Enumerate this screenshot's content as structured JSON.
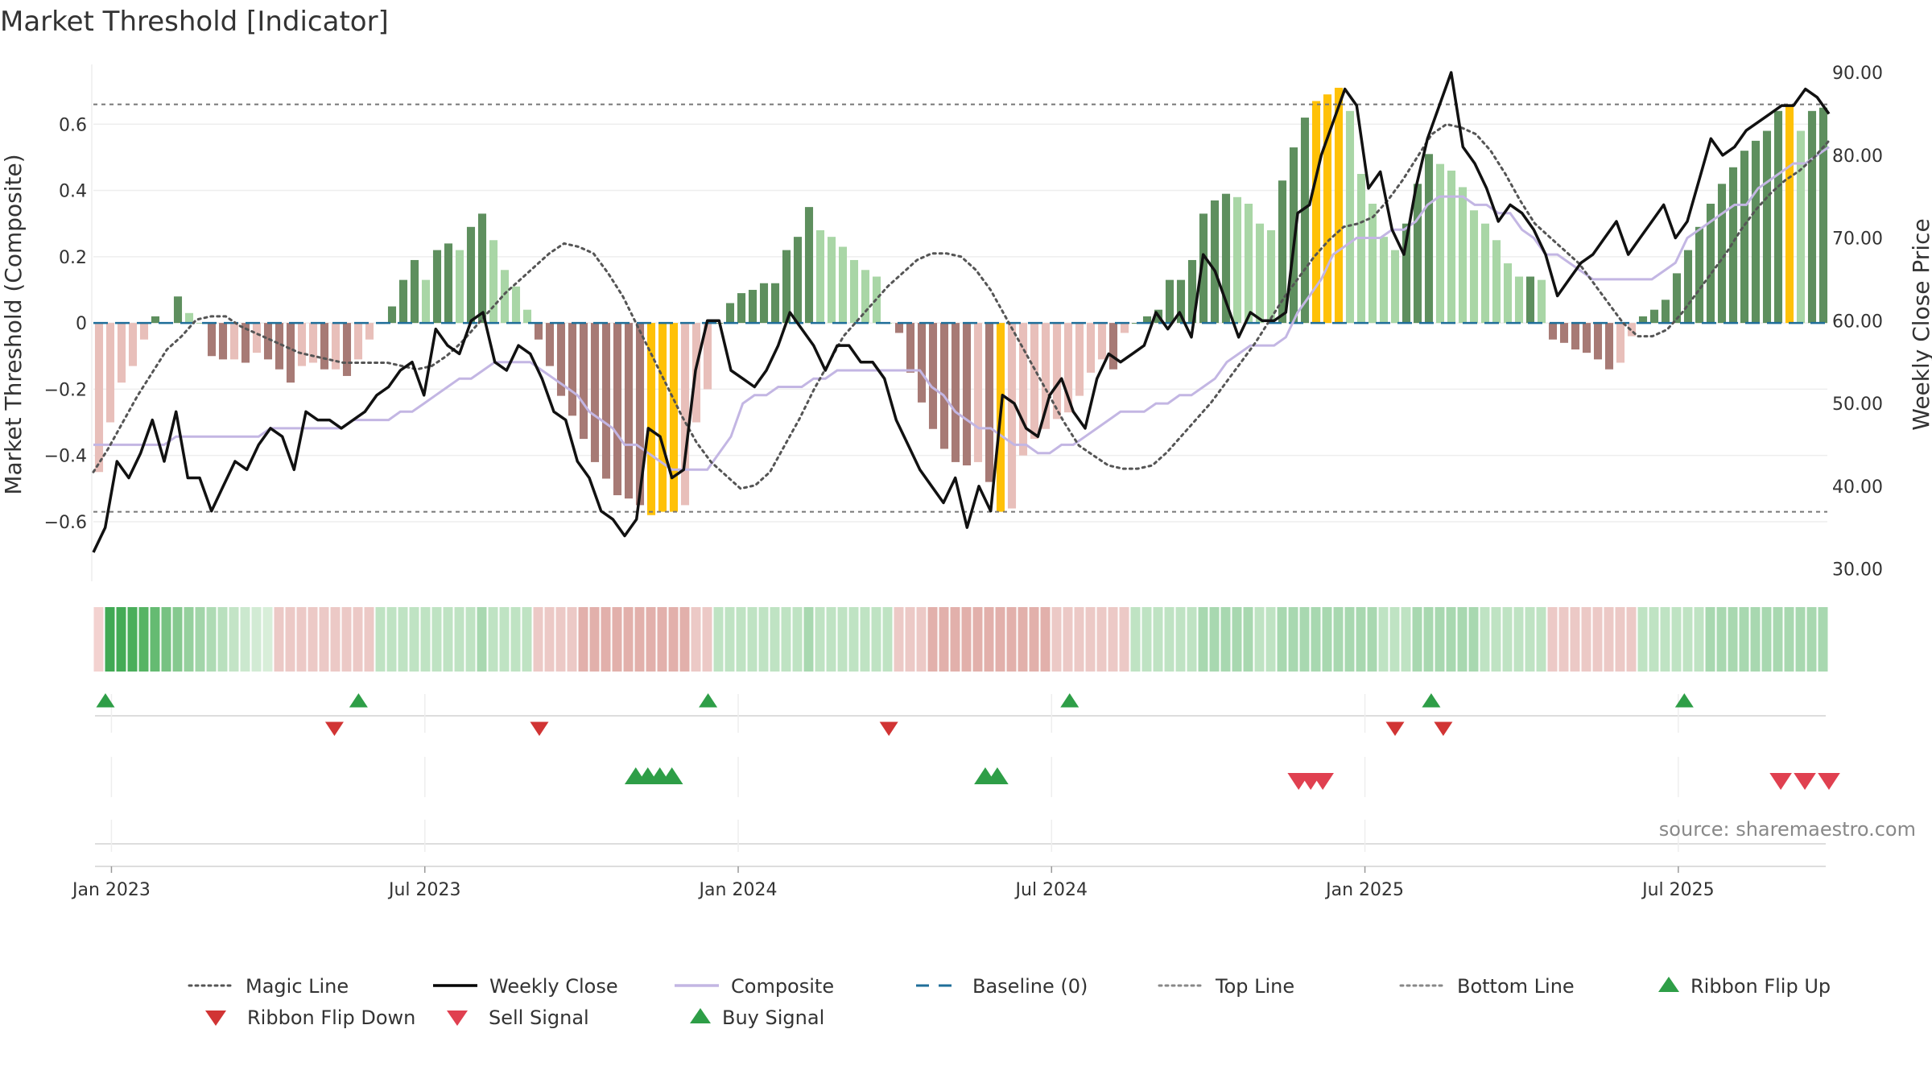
{
  "chart_data": {
    "type": "bar",
    "title": "Market Threshold [Indicator]",
    "ylabel_left": "Market Threshold (Composite)",
    "ylabel_right": "Weekly Close Price",
    "source": "source: sharemaestro.com",
    "left_axis": {
      "range": [
        -0.78,
        0.8
      ],
      "ticks": [
        0.6,
        0.4,
        0.2,
        0,
        -0.2,
        -0.4,
        -0.6
      ],
      "tick_labels": [
        "0.6",
        "0.4",
        "0.2",
        "0",
        "−0.2",
        "−0.4",
        "−0.6"
      ]
    },
    "right_axis": {
      "range": [
        28.5,
        90.0
      ],
      "ticks": [
        90,
        80,
        70,
        60,
        50,
        40,
        30
      ],
      "tick_labels": [
        "90.00",
        "80.00",
        "70.00",
        "60.00",
        "50.00",
        "40.00",
        "30.00"
      ]
    },
    "x_ticks": [
      {
        "week": 1.5,
        "label": "Jan 2023"
      },
      {
        "week": 27.5,
        "label": "Jul 2023"
      },
      {
        "week": 53.5,
        "label": "Jan 2024"
      },
      {
        "week": 79.5,
        "label": "Jul 2024"
      },
      {
        "week": 105.5,
        "label": "Jan 2025"
      },
      {
        "week": 131.5,
        "label": "Jul 2025"
      }
    ],
    "x_range": [
      0,
      144
    ],
    "top_line": 0.66,
    "bottom_line": -0.57,
    "baseline": 0,
    "composite_bars": [
      -0.45,
      -0.3,
      -0.18,
      -0.13,
      -0.05,
      0.02,
      0,
      0.08,
      0.03,
      0,
      -0.1,
      -0.11,
      -0.11,
      -0.12,
      -0.09,
      -0.11,
      -0.14,
      -0.18,
      -0.13,
      -0.12,
      -0.14,
      -0.14,
      -0.16,
      -0.11,
      -0.05,
      0,
      0.05,
      0.13,
      0.19,
      0.13,
      0.22,
      0.24,
      0.22,
      0.29,
      0.33,
      0.25,
      0.16,
      0.11,
      0.04,
      -0.05,
      -0.13,
      -0.22,
      -0.28,
      -0.35,
      -0.42,
      -0.47,
      -0.52,
      -0.53,
      -0.55,
      -0.58,
      -0.57,
      -0.57,
      -0.55,
      -0.3,
      -0.2,
      0,
      0.06,
      0.09,
      0.1,
      0.12,
      0.12,
      0.22,
      0.26,
      0.35,
      0.28,
      0.26,
      0.23,
      0.19,
      0.16,
      0.14,
      0,
      -0.03,
      -0.15,
      -0.24,
      -0.32,
      -0.38,
      -0.42,
      -0.43,
      -0.42,
      -0.48,
      -0.57,
      -0.56,
      -0.4,
      -0.35,
      -0.32,
      -0.29,
      -0.27,
      -0.22,
      -0.15,
      -0.11,
      -0.14,
      -0.03,
      0,
      0.02,
      0.04,
      0.13,
      0.13,
      0.19,
      0.33,
      0.37,
      0.39,
      0.38,
      0.36,
      0.3,
      0.28,
      0.43,
      0.53,
      0.62,
      0.67,
      0.69,
      0.71,
      0.64,
      0.45,
      0.36,
      0.26,
      0.22,
      0.3,
      0.42,
      0.51,
      0.48,
      0.46,
      0.41,
      0.34,
      0.3,
      0.25,
      0.18,
      0.14,
      0.14,
      0.13,
      -0.05,
      -0.06,
      -0.08,
      -0.09,
      -0.11,
      -0.14,
      -0.12,
      -0.04,
      0.02,
      0.04,
      0.07,
      0.15,
      0.22,
      0.29,
      0.36,
      0.42,
      0.47,
      0.52,
      0.55,
      0.58,
      0.64,
      0.66,
      0.58,
      0.64,
      0.65
    ],
    "weekly_close": [
      32,
      35,
      43,
      41,
      44,
      48,
      43,
      49,
      41,
      41,
      37,
      40,
      43,
      42,
      45,
      47,
      46,
      42,
      49,
      48,
      48,
      47,
      48,
      49,
      51,
      52,
      54,
      55,
      51,
      59,
      57,
      56,
      60,
      61,
      55,
      54,
      57,
      56,
      53,
      49,
      48,
      43,
      41,
      37,
      36,
      34,
      36,
      47,
      46,
      41,
      42,
      54,
      60,
      60,
      54,
      53,
      52,
      54,
      57,
      61,
      59,
      57,
      54,
      57,
      57,
      55,
      55,
      53,
      48,
      45,
      42,
      40,
      38,
      41,
      35,
      40,
      37,
      51,
      50,
      47,
      46,
      51,
      53,
      49,
      47,
      53,
      56,
      55,
      56,
      57,
      61,
      59,
      61,
      58,
      68,
      66,
      62,
      58,
      61,
      60,
      60,
      61,
      73,
      74,
      80,
      84,
      88,
      86,
      76,
      78,
      71,
      68,
      76,
      82,
      86,
      90,
      81,
      79,
      76,
      72,
      74,
      73,
      71,
      68,
      63,
      65,
      67,
      68,
      70,
      72,
      68,
      70,
      72,
      74,
      70,
      72,
      77,
      82,
      80,
      81,
      83,
      84,
      85,
      86,
      86,
      88,
      87,
      85
    ],
    "composite_line": [
      45,
      45,
      45,
      45,
      45,
      45,
      45,
      46,
      46,
      46,
      46,
      46,
      46,
      46,
      46,
      47,
      47,
      47,
      47,
      47,
      47,
      47,
      48,
      48,
      48,
      48,
      49,
      49,
      50,
      51,
      52,
      53,
      53,
      54,
      55,
      55,
      55,
      55,
      54,
      53,
      52,
      51,
      49,
      48,
      47,
      45,
      45,
      44,
      43,
      42,
      42,
      42,
      42,
      44,
      46,
      50,
      51,
      51,
      52,
      52,
      52,
      53,
      53,
      54,
      54,
      54,
      54,
      54,
      54,
      54,
      54,
      52,
      51,
      49,
      48,
      47,
      47,
      46,
      45,
      45,
      44,
      44,
      45,
      45,
      46,
      47,
      48,
      49,
      49,
      49,
      50,
      50,
      51,
      51,
      52,
      53,
      55,
      56,
      57,
      57,
      57,
      58,
      61,
      63,
      65,
      68,
      69,
      70,
      70,
      70,
      71,
      71,
      72,
      74,
      75,
      75,
      75,
      74,
      74,
      73,
      73,
      71,
      70,
      68,
      68,
      67,
      66,
      65,
      65,
      65,
      65,
      65,
      65,
      66,
      67,
      70,
      71,
      72,
      73,
      74,
      74,
      76,
      77,
      78,
      79,
      79,
      80,
      81
    ],
    "magic_line": [
      -0.45,
      -0.38,
      -0.3,
      -0.22,
      -0.15,
      -0.08,
      -0.04,
      0.01,
      0.02,
      0.02,
      -0.01,
      -0.03,
      -0.05,
      -0.07,
      -0.09,
      -0.1,
      -0.11,
      -0.12,
      -0.12,
      -0.12,
      -0.12,
      -0.13,
      -0.14,
      -0.13,
      -0.1,
      -0.06,
      -0.01,
      0.04,
      0.09,
      0.13,
      0.17,
      0.21,
      0.24,
      0.23,
      0.21,
      0.15,
      0.08,
      -0.01,
      -0.1,
      -0.19,
      -0.28,
      -0.36,
      -0.42,
      -0.46,
      -0.5,
      -0.49,
      -0.45,
      -0.37,
      -0.29,
      -0.2,
      -0.12,
      -0.04,
      0.01,
      0.06,
      0.11,
      0.15,
      0.19,
      0.21,
      0.21,
      0.2,
      0.16,
      0.1,
      0.02,
      -0.06,
      -0.14,
      -0.22,
      -0.3,
      -0.37,
      -0.4,
      -0.43,
      -0.44,
      -0.44,
      -0.43,
      -0.39,
      -0.34,
      -0.29,
      -0.24,
      -0.18,
      -0.12,
      -0.06,
      0.01,
      0.08,
      0.14,
      0.2,
      0.25,
      0.29,
      0.3,
      0.32,
      0.37,
      0.43,
      0.5,
      0.57,
      0.6,
      0.59,
      0.57,
      0.52,
      0.45,
      0.37,
      0.3,
      0.26,
      0.22,
      0.18,
      0.12,
      0.06,
      0,
      -0.04,
      -0.04,
      -0.02,
      0.03,
      0.09,
      0.15,
      0.21,
      0.28,
      0.34,
      0.39,
      0.43,
      0.46,
      0.5,
      0.55
    ],
    "ribbon": [
      {
        "label": "Magic Line"
      },
      {
        "label": "Weekly Close"
      }
    ],
    "ribbon_colors": [
      "#f3d2d0",
      "#41a954",
      "#44ab56",
      "#4aae5b",
      "#56b464",
      "#65bb72",
      "#77c282",
      "#86c98f",
      "#95d09d",
      "#a2d5a9",
      "#aedbb4",
      "#b9e0be",
      "#c3e4c6",
      "#cbe8ce",
      "#d2ebd4",
      "#d8eed9",
      "#f1d6d4",
      "#e8c2bf",
      "#dfaaa6",
      "#a8d8b0",
      "#9dd3a6"
    ],
    "ribbon_flip_up": [
      1,
      22,
      51,
      81,
      111,
      132
    ],
    "ribbon_flip_down": [
      20,
      37,
      66,
      108,
      112
    ],
    "buy_signal": [
      45,
      46,
      47,
      48,
      74,
      75
    ],
    "sell_signal": [
      100,
      101,
      102,
      140,
      142,
      144
    ],
    "legend": [
      {
        "label": "Magic Line",
        "kind": "dot-line",
        "color": "#555555"
      },
      {
        "label": "Weekly Close",
        "kind": "solid-line",
        "color": "#000000"
      },
      {
        "label": "Composite",
        "kind": "solid-line",
        "color": "#c3b6e3"
      },
      {
        "label": "Baseline (0)",
        "kind": "dash-line",
        "color": "#1f6e99"
      },
      {
        "label": "Top Line",
        "kind": "dot-line",
        "color": "#888888"
      },
      {
        "label": "Bottom Line",
        "kind": "dot-line",
        "color": "#888888"
      },
      {
        "label": "Ribbon Flip Up",
        "kind": "tri-up",
        "color": "#2e9e47"
      },
      {
        "label": "Ribbon Flip Down",
        "kind": "tri-down",
        "color": "#d13434"
      },
      {
        "label": "Sell Signal",
        "kind": "tri-down",
        "color": "#e04050"
      },
      {
        "label": "Buy Signal",
        "kind": "tri-up",
        "color": "#2e9e47"
      }
    ],
    "colors": {
      "dark_green": "#5e8f5e",
      "light_green": "#a9d6a6",
      "dark_red": "#a77a75",
      "light_red": "#e8bfba",
      "extreme": "#ffc107",
      "close": "#111111",
      "composite": "#c3b6e3",
      "magic": "#555555",
      "baseline": "#1f6e99",
      "refline": "#777777",
      "grid": "#eeeeee"
    }
  }
}
